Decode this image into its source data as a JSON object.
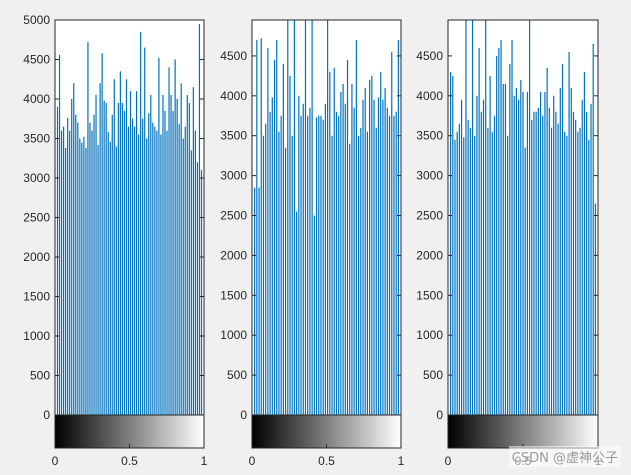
{
  "figure": {
    "background": "#f0f0f0",
    "bar_color": "#0072bd",
    "watermark": "CSDN @虚神公子"
  },
  "chart_data": [
    {
      "type": "bar",
      "title": "",
      "xlabel": "",
      "ylabel": "",
      "xlim": [
        0,
        1
      ],
      "ylim": [
        0,
        5000
      ],
      "yticks": [
        0,
        500,
        1000,
        1500,
        2000,
        2500,
        3000,
        3500,
        4000,
        4500,
        5000
      ],
      "xticks": [
        0,
        0.5,
        1
      ],
      "colorbar": "gray",
      "values": [
        3900,
        4560,
        3600,
        3650,
        3380,
        3760,
        3600,
        4000,
        4200,
        3800,
        3700,
        3500,
        3450,
        3520,
        3380,
        4720,
        3700,
        3600,
        3800,
        4050,
        3420,
        4200,
        4580,
        3980,
        3950,
        3580,
        3460,
        3800,
        4250,
        3400,
        3950,
        4350,
        3950,
        3850,
        4250,
        3650,
        4100,
        3750,
        3650,
        4100,
        3550,
        4850,
        3750,
        4650,
        3500,
        3820,
        4050,
        3700,
        3650,
        3600,
        4520,
        3550,
        4050,
        3850,
        3600,
        4400,
        4050,
        3850,
        4500,
        4000,
        3680,
        4200,
        3500,
        3650,
        4050,
        3950,
        3350,
        4150,
        3600,
        3200,
        4950,
        3100
      ]
    },
    {
      "type": "bar",
      "title": "",
      "xlabel": "",
      "ylabel": "",
      "xlim": [
        0,
        1
      ],
      "ylim": [
        0,
        4950
      ],
      "yticks": [
        0,
        500,
        1000,
        1500,
        2000,
        2500,
        3000,
        3500,
        4000,
        4500
      ],
      "xticks": [
        0,
        0.5,
        1
      ],
      "colorbar": "gray",
      "values": [
        2850,
        4700,
        2850,
        4720,
        3500,
        3650,
        4600,
        3800,
        3980,
        4450,
        4700,
        3550,
        3750,
        4400,
        3350,
        4950,
        4250,
        3500,
        4950,
        2550,
        4000,
        3750,
        3900,
        4950,
        3750,
        3850,
        4950,
        2500,
        3730,
        3750,
        3750,
        3700,
        3900,
        4950,
        4300,
        3500,
        4350,
        3800,
        3750,
        4050,
        4150,
        3900,
        4450,
        3400,
        4150,
        3850,
        4700,
        3500,
        3600,
        3950,
        4100,
        3550,
        4200,
        4250,
        3950,
        3600,
        3980,
        4300,
        3950,
        4100,
        3850,
        3750,
        4550,
        3750,
        3800,
        4700
      ]
    },
    {
      "type": "bar",
      "title": "",
      "xlabel": "",
      "ylabel": "",
      "xlim": [
        0,
        1
      ],
      "ylim": [
        0,
        4950
      ],
      "yticks": [
        0,
        500,
        1000,
        1500,
        2000,
        2500,
        3000,
        3500,
        4000,
        4500
      ],
      "xticks": [
        0,
        0.5,
        1
      ],
      "colorbar": "gray",
      "values": [
        4300,
        4250,
        3450,
        3550,
        3650,
        3950,
        3480,
        4950,
        3700,
        3600,
        4950,
        3500,
        4000,
        4600,
        3800,
        3950,
        4950,
        3600,
        4250,
        3550,
        3750,
        4500,
        4600,
        4700,
        4150,
        4150,
        3500,
        4400,
        4700,
        4000,
        4100,
        3950,
        4200,
        4050,
        3350,
        4050,
        4950,
        3700,
        3800,
        3800,
        3850,
        4050,
        3750,
        4050,
        4350,
        3850,
        3600,
        4000,
        3800,
        3650,
        4100,
        4400,
        3550,
        3500,
        4550,
        4100,
        3800,
        3700,
        3550,
        3600,
        3950,
        4300,
        3800,
        3450,
        3900,
        4650,
        2650
      ]
    }
  ]
}
